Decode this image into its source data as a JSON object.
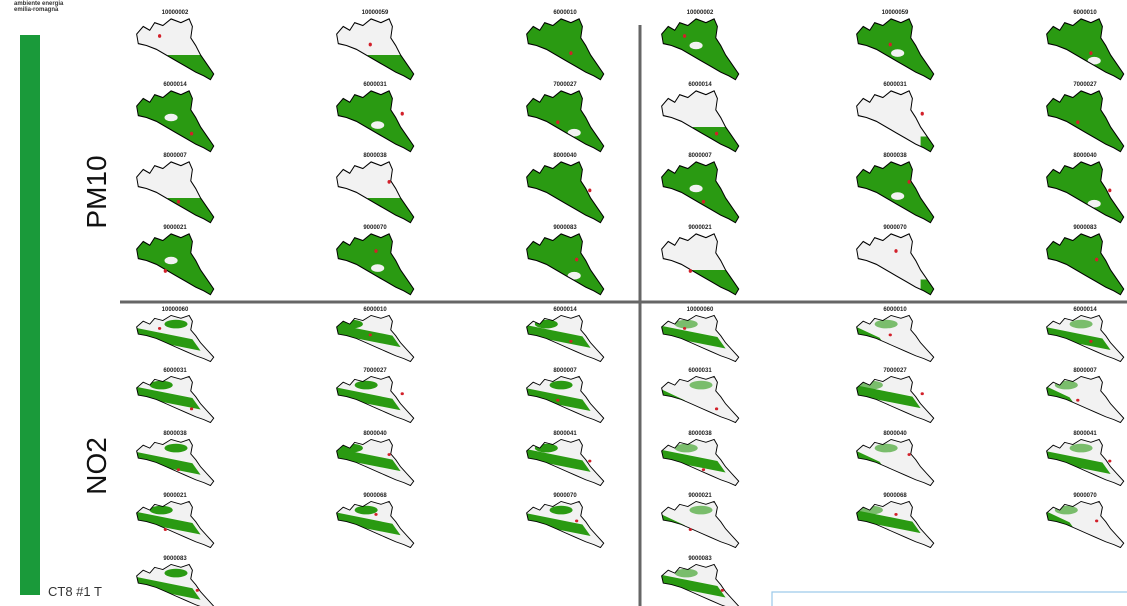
{
  "header": {
    "line1": "ambiente energia",
    "line2": "emilia-romagna"
  },
  "footer": "CT8 #1 T",
  "panels": [
    {
      "label": "PM10",
      "left": [
        "10000002",
        "10000059",
        "6000010",
        "6000014",
        "6000031",
        "7000027",
        "8000007",
        "8000038",
        "8000040",
        "9000021",
        "9000070",
        "9000083"
      ],
      "right": [
        "10000002",
        "10000059",
        "6000010",
        "6000014",
        "6000031",
        "7000027",
        "8000007",
        "8000038",
        "8000040",
        "9000021",
        "9000070",
        "9000083"
      ]
    },
    {
      "label": "NO2",
      "left": [
        "10000060",
        "6000010",
        "6000014",
        "6000031",
        "7000027",
        "8000007",
        "8000038",
        "8000040",
        "8000041",
        "9000021",
        "9000068",
        "9000070",
        "9000083"
      ],
      "right": [
        "10000060",
        "6000010",
        "6000014",
        "6000031",
        "7000027",
        "8000007",
        "8000038",
        "8000040",
        "8000041",
        "9000021",
        "9000068",
        "9000070",
        "9000083"
      ]
    }
  ]
}
